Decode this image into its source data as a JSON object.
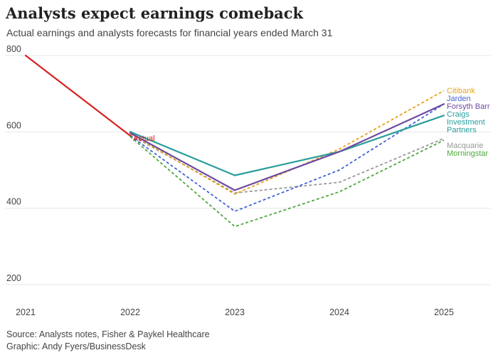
{
  "title": "Analysts expect earnings comeback",
  "subtitle": "Actual earnings and analysts forecasts for financial years ended March 31",
  "footer": {
    "source": "Source: Analysts notes, Fisher & Paykel Healthcare",
    "graphic": "Graphic: Andy Fyers/BusinessDesk"
  },
  "chart_data": {
    "type": "line",
    "x": [
      2021,
      2022,
      2023,
      2024,
      2025
    ],
    "y_ticks": [
      200,
      400,
      600,
      800
    ],
    "x_ticks": [
      "2021",
      "2022",
      "2023",
      "2024",
      "2025"
    ],
    "ylim": [
      170,
      800
    ],
    "grid": true,
    "series": [
      {
        "name": "Actual",
        "color": "#d62020",
        "dashed": false,
        "width": 2.2,
        "points": [
          [
            2021,
            800
          ],
          [
            2022,
            590
          ]
        ],
        "label": [
          "Actual"
        ]
      },
      {
        "name": "Citibank",
        "color": "#e8a317",
        "dashed": true,
        "width": 1.8,
        "points": [
          [
            2022,
            595
          ],
          [
            2023,
            437
          ],
          [
            2024,
            555
          ],
          [
            2025,
            708
          ]
        ],
        "label": [
          "Citibank"
        ]
      },
      {
        "name": "Jarden",
        "color": "#4463d6",
        "dashed": true,
        "width": 1.8,
        "points": [
          [
            2022,
            590
          ],
          [
            2023,
            392
          ],
          [
            2024,
            500
          ],
          [
            2025,
            673
          ]
        ],
        "label": [
          "Jarden"
        ]
      },
      {
        "name": "Forsyth Barr",
        "color": "#6e4ba0",
        "dashed": false,
        "width": 2.2,
        "points": [
          [
            2022,
            597
          ],
          [
            2023,
            447
          ],
          [
            2024,
            548
          ],
          [
            2025,
            673
          ]
        ],
        "label": [
          "Forsyth Barr"
        ]
      },
      {
        "name": "Craigs Investment Partners",
        "color": "#2a9d9c",
        "dashed": false,
        "width": 2.2,
        "points": [
          [
            2022,
            600
          ],
          [
            2023,
            486
          ],
          [
            2024,
            548
          ],
          [
            2025,
            643
          ]
        ],
        "label": [
          "Craigs",
          "Investment",
          "Partners"
        ]
      },
      {
        "name": "Macquarie",
        "color": "#999999",
        "dashed": true,
        "width": 1.8,
        "points": [
          [
            2022,
            592
          ],
          [
            2023,
            440
          ],
          [
            2024,
            468
          ],
          [
            2025,
            583
          ]
        ],
        "label": [
          "Macquarie"
        ]
      },
      {
        "name": "Morningstar",
        "color": "#4fa83d",
        "dashed": true,
        "width": 1.8,
        "points": [
          [
            2022,
            588
          ],
          [
            2023,
            352
          ],
          [
            2024,
            443
          ],
          [
            2025,
            578
          ]
        ],
        "label": [
          "Morningstar"
        ]
      }
    ]
  }
}
